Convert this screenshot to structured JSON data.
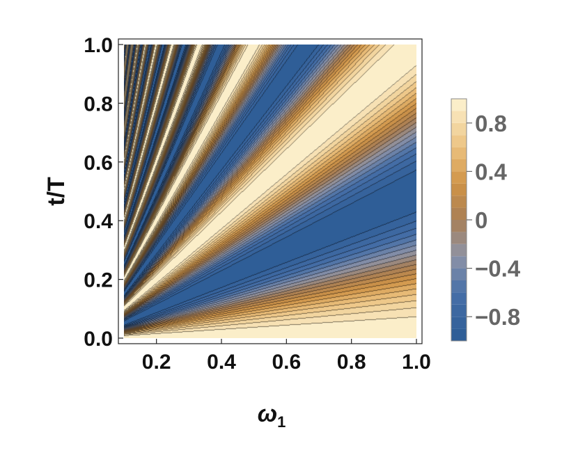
{
  "chart_data": {
    "type": "heatmap",
    "subtype": "contour",
    "title": "",
    "xlabel_base": "ω",
    "xlabel_sub": "1",
    "ylabel": "t/T",
    "xlim": [
      0.1,
      1.0
    ],
    "ylim": [
      0.0,
      1.0
    ],
    "x_ticks": [
      0.2,
      0.4,
      0.6,
      0.8,
      1.0
    ],
    "x_tick_labels": [
      "0.2",
      "0.4",
      "0.6",
      "0.8",
      "1.0"
    ],
    "y_ticks": [
      0.0,
      0.2,
      0.4,
      0.6,
      0.8,
      1.0
    ],
    "y_tick_labels": [
      "0.0",
      "0.2",
      "0.4",
      "0.6",
      "0.8",
      "1.0"
    ],
    "z_function": "cos(2π·(t/T)/ω₁)",
    "zlim": [
      -1.0,
      1.0
    ],
    "contour_levels": 20,
    "colorbar": {
      "placement": "right",
      "ticks": [
        0.8,
        0.4,
        0.0,
        -0.4,
        -0.8
      ],
      "tick_labels": [
        "0.8",
        "0.4",
        "0",
        "−0.4",
        "−0.8"
      ]
    },
    "colormap": [
      {
        "v": -1.0,
        "color": "#2c5b95"
      },
      {
        "v": -0.6,
        "color": "#4770a8"
      },
      {
        "v": -0.3,
        "color": "#8e93a7"
      },
      {
        "v": 0.0,
        "color": "#a87f55"
      },
      {
        "v": 0.3,
        "color": "#cf9347"
      },
      {
        "v": 0.6,
        "color": "#ecc27f"
      },
      {
        "v": 1.0,
        "color": "#fdf4d3"
      }
    ],
    "grid": false
  }
}
